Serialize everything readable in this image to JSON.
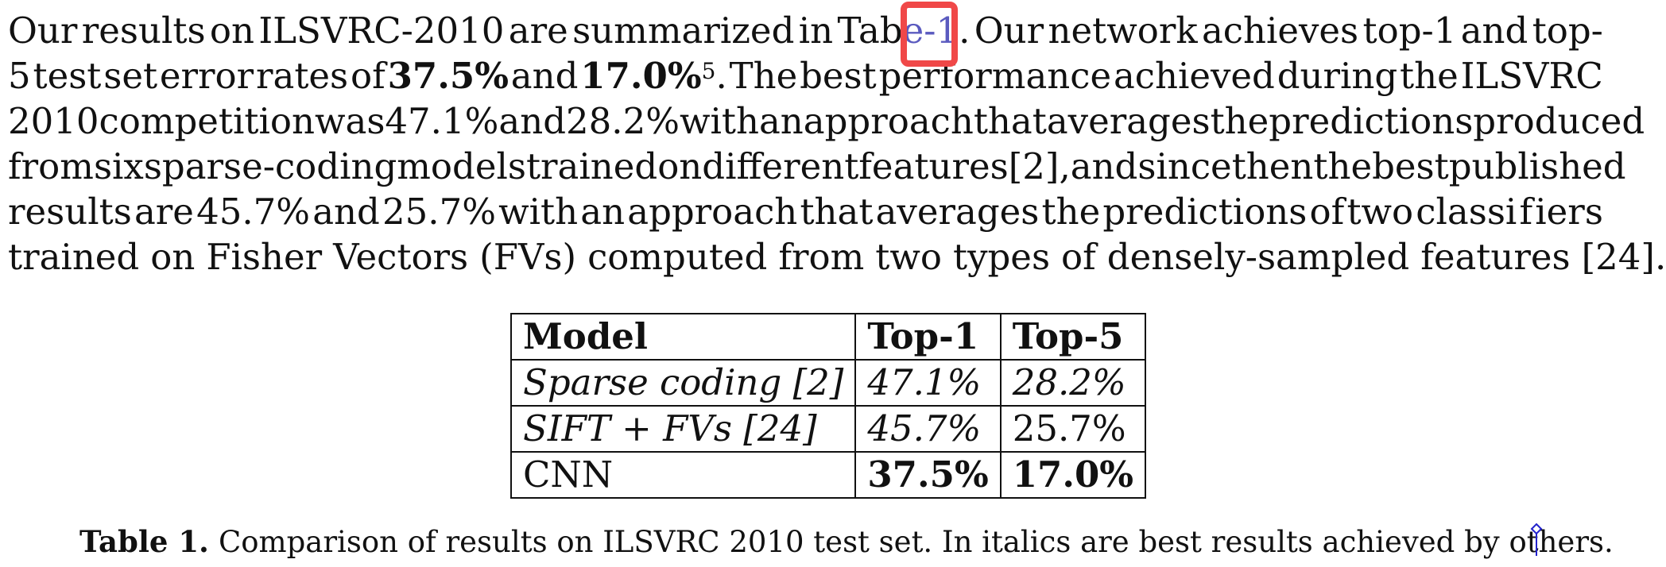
{
  "paragraph": {
    "lines": [
      [
        "Our",
        "results",
        "on",
        "ILSVRC-2010",
        "are",
        "summarized",
        "in",
        "Tab",
        "e-1",
        ".",
        "Our",
        "network",
        "achieves",
        "top-1",
        "and",
        "top-"
      ],
      [
        "5",
        "test",
        "set",
        "error",
        "rates",
        "of",
        "37.5%",
        "and",
        "17.0%",
        "5",
        ".",
        "The",
        "best",
        "performance",
        "achieved",
        "during",
        "the",
        "ILSVRC"
      ],
      [
        "2010",
        "competition",
        "was",
        "47.1%",
        "and",
        "28.2%",
        "with",
        "an",
        "approach",
        "that",
        "averages",
        "the",
        "predictions",
        "produced"
      ],
      [
        "from",
        "six",
        "sparse-coding",
        "models",
        "trained",
        "on",
        "different",
        "features",
        "[2],",
        "and",
        "since",
        "then",
        "the",
        "best",
        "pub",
        "lished"
      ],
      [
        "results",
        "are",
        "45.7%",
        "and",
        "25.7%",
        "with",
        "an",
        "approach",
        "that",
        "averages",
        "the",
        "predictions",
        "of",
        "two",
        "classi",
        "f",
        "iers"
      ],
      [
        "trained",
        "on",
        "Fisher",
        "Vectors",
        "(FVs)",
        "computed",
        "from",
        "two",
        "types",
        "of",
        "densely-sampled",
        "features",
        "[24]."
      ]
    ],
    "table_ref": "e-1"
  },
  "table": {
    "headers": [
      "Model",
      "Top-1",
      "Top-5"
    ],
    "rows": [
      [
        "Sparse coding [2]",
        "47.1%",
        "28.2%"
      ],
      [
        "SIFT + FVs [24]",
        "45.7%",
        "25.7%"
      ],
      [
        "CNN",
        "37.5%",
        "17.0%"
      ]
    ]
  },
  "caption": {
    "label": "Table 1.",
    "text": "Comparison of results on ILSVRC 2010 test set. In italics are best results achieved by others."
  },
  "colors": {
    "link": "#5a5abf",
    "highlight": "#f04848",
    "cursor": "#2222cc"
  }
}
